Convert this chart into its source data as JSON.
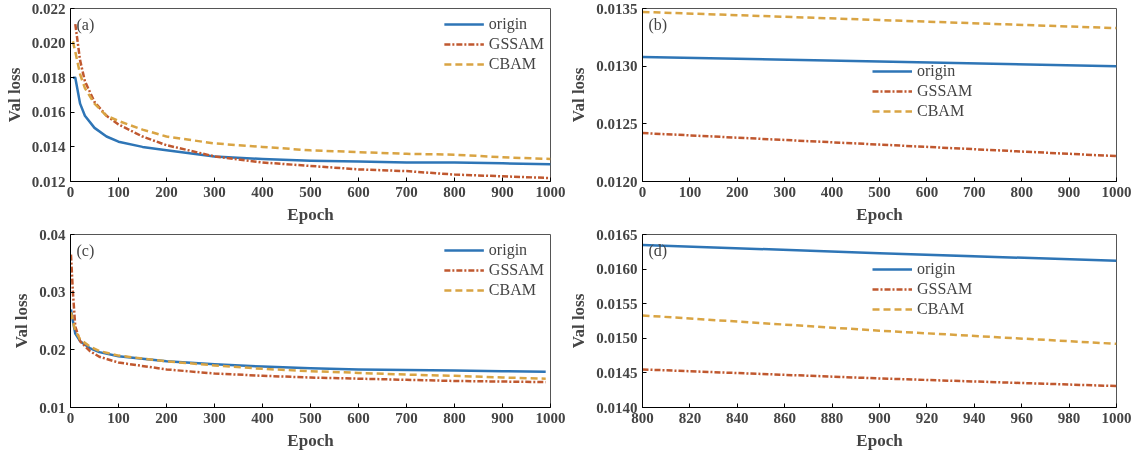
{
  "chart_data": [
    {
      "type": "line",
      "xlabel": "Epoch",
      "ylabel": "Val loss",
      "annotations": [
        "(a)"
      ],
      "xlim": [
        0,
        1000
      ],
      "xticks": [
        0,
        100,
        200,
        300,
        400,
        500,
        600,
        700,
        800,
        900,
        1000
      ],
      "ylim": [
        0.012,
        0.022
      ],
      "yticks": [
        {
          "value": 0.012,
          "label": "0.012"
        },
        {
          "value": 0.014,
          "label": "0.014"
        },
        {
          "value": 0.016,
          "label": "0.016"
        },
        {
          "value": 0.018,
          "label": "0.018"
        },
        {
          "value": 0.02,
          "label": "0.020"
        },
        {
          "value": 0.022,
          "label": "0.022"
        }
      ],
      "grid": false,
      "legend": "top right",
      "series": [
        {
          "name": "origin",
          "color": "#2e75b6",
          "line_style": "solid",
          "x": [
            5,
            10,
            20,
            30,
            50,
            75,
            100,
            150,
            200,
            300,
            400,
            500,
            600,
            700,
            800,
            900,
            1000
          ],
          "values": [
            0.018,
            0.018,
            0.0165,
            0.0158,
            0.0151,
            0.0146,
            0.0143,
            0.014,
            0.0138,
            0.01345,
            0.0133,
            0.0132,
            0.01315,
            0.0131,
            0.0131,
            0.01305,
            0.013
          ]
        },
        {
          "name": "GSSAM",
          "color": "#c0582f",
          "line_style": "dashdot",
          "x": [
            10,
            20,
            30,
            50,
            75,
            100,
            150,
            200,
            300,
            400,
            500,
            600,
            700,
            800,
            900,
            1000
          ],
          "values": [
            0.0211,
            0.019,
            0.0178,
            0.0166,
            0.0158,
            0.0153,
            0.0146,
            0.0141,
            0.01345,
            0.0131,
            0.0129,
            0.0127,
            0.0126,
            0.0124,
            0.0123,
            0.0122
          ]
        },
        {
          "name": "CBAM",
          "color": "#d9a443",
          "line_style": "dashed",
          "x": [
            5,
            10,
            20,
            30,
            50,
            75,
            100,
            150,
            200,
            300,
            400,
            500,
            600,
            700,
            800,
            900,
            1000
          ],
          "values": [
            0.0201,
            0.0195,
            0.0182,
            0.0174,
            0.0165,
            0.0158,
            0.0155,
            0.015,
            0.0146,
            0.0142,
            0.014,
            0.0138,
            0.0137,
            0.0136,
            0.01355,
            0.0134,
            0.0133
          ]
        }
      ]
    },
    {
      "type": "line",
      "xlabel": "Epoch",
      "ylabel": "Val loss",
      "annotations": [
        "(b)"
      ],
      "xlim": [
        0,
        1000
      ],
      "xticks": [
        0,
        100,
        200,
        300,
        400,
        500,
        600,
        700,
        800,
        900,
        1000
      ],
      "ylim": [
        0.012,
        0.0135
      ],
      "yticks": [
        {
          "value": 0.012,
          "label": "0.0120"
        },
        {
          "value": 0.0125,
          "label": "0.0125"
        },
        {
          "value": 0.013,
          "label": "0.0130"
        },
        {
          "value": 0.0135,
          "label": "0.0135"
        }
      ],
      "grid": false,
      "legend": "center",
      "series": [
        {
          "name": "origin",
          "color": "#2e75b6",
          "line_style": "solid",
          "x": [
            0,
            500,
            1000
          ],
          "values": [
            0.01308,
            0.01304,
            0.013
          ]
        },
        {
          "name": "GSSAM",
          "color": "#c0582f",
          "line_style": "dashdot",
          "x": [
            0,
            500,
            1000
          ],
          "values": [
            0.01242,
            0.01232,
            0.01222
          ]
        },
        {
          "name": "CBAM",
          "color": "#d9a443",
          "line_style": "dashed",
          "x": [
            0,
            500,
            1000
          ],
          "values": [
            0.01347,
            0.0134,
            0.01333
          ]
        }
      ]
    },
    {
      "type": "line",
      "xlabel": "Epoch",
      "ylabel": "Val loss",
      "annotations": [
        "(c)"
      ],
      "xlim": [
        0,
        1000
      ],
      "xticks": [
        0,
        100,
        200,
        300,
        400,
        500,
        600,
        700,
        800,
        900,
        1000
      ],
      "ylim": [
        0.01,
        0.04
      ],
      "yticks": [
        0.01,
        0.02,
        0.03,
        0.04
      ],
      "grid": false,
      "legend": "top right",
      "series": [
        {
          "name": "origin",
          "color": "#2e75b6",
          "line_style": "solid",
          "x": [
            1,
            5,
            10,
            20,
            40,
            60,
            100,
            200,
            300,
            400,
            500,
            600,
            700,
            800,
            900,
            990
          ],
          "values": [
            0.027,
            0.025,
            0.0228,
            0.0215,
            0.0203,
            0.0196,
            0.0189,
            0.018,
            0.0175,
            0.0171,
            0.0168,
            0.0166,
            0.0165,
            0.0164,
            0.0163,
            0.0162
          ]
        },
        {
          "name": "GSSAM",
          "color": "#c0582f",
          "line_style": "dashdot",
          "x": [
            1,
            5,
            10,
            20,
            40,
            60,
            100,
            200,
            300,
            400,
            500,
            600,
            700,
            800,
            900,
            990
          ],
          "values": [
            0.0365,
            0.03,
            0.024,
            0.0215,
            0.0198,
            0.0188,
            0.0178,
            0.0166,
            0.0159,
            0.0155,
            0.0152,
            0.015,
            0.0148,
            0.0146,
            0.0145,
            0.0144
          ]
        },
        {
          "name": "CBAM",
          "color": "#d9a443",
          "line_style": "dashed",
          "x": [
            1,
            5,
            10,
            20,
            40,
            60,
            100,
            200,
            300,
            400,
            500,
            600,
            700,
            800,
            900,
            990
          ],
          "values": [
            0.0265,
            0.025,
            0.0233,
            0.0218,
            0.0206,
            0.0198,
            0.019,
            0.018,
            0.0173,
            0.0167,
            0.0163,
            0.016,
            0.0157,
            0.0155,
            0.0152,
            0.015
          ]
        }
      ]
    },
    {
      "type": "line",
      "xlabel": "Epoch",
      "ylabel": "Val loss",
      "annotations": [
        "(d)"
      ],
      "xlim": [
        800,
        1000
      ],
      "xticks": [
        800,
        820,
        840,
        860,
        880,
        900,
        920,
        940,
        960,
        980,
        1000
      ],
      "ylim": [
        0.014,
        0.0165
      ],
      "yticks": [
        {
          "value": 0.014,
          "label": "0.0140"
        },
        {
          "value": 0.0145,
          "label": "0.0145"
        },
        {
          "value": 0.015,
          "label": "0.0150"
        },
        {
          "value": 0.0155,
          "label": "0.0155"
        },
        {
          "value": 0.016,
          "label": "0.0160"
        },
        {
          "value": 0.0165,
          "label": "0.0165"
        }
      ],
      "grid": false,
      "legend": "top",
      "series": [
        {
          "name": "origin",
          "color": "#2e75b6",
          "line_style": "solid",
          "x": [
            800,
            900,
            1000
          ],
          "values": [
            0.01635,
            0.01623,
            0.01612
          ]
        },
        {
          "name": "GSSAM",
          "color": "#c0582f",
          "line_style": "dashdot",
          "x": [
            800,
            900,
            1000
          ],
          "values": [
            0.01455,
            0.01442,
            0.01431
          ]
        },
        {
          "name": "CBAM",
          "color": "#d9a443",
          "line_style": "dashed",
          "x": [
            800,
            900,
            1000
          ],
          "values": [
            0.01533,
            0.01511,
            0.01492
          ]
        }
      ]
    }
  ]
}
